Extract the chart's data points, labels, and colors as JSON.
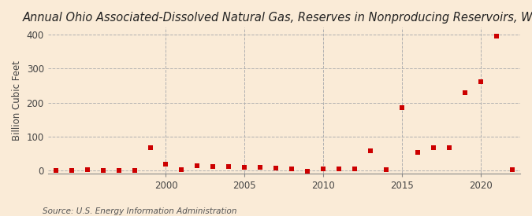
{
  "title": "Annual Ohio Associated-Dissolved Natural Gas, Reserves in Nonproducing Reservoirs, Wet",
  "ylabel": "Billion Cubic Feet",
  "source": "Source: U.S. Energy Information Administration",
  "background_color": "#faebd7",
  "plot_background_color": "#faebd7",
  "marker_color": "#cc0000",
  "marker_size": 18,
  "years": [
    1993,
    1994,
    1995,
    1996,
    1997,
    1998,
    1999,
    2000,
    2001,
    2002,
    2003,
    2004,
    2005,
    2006,
    2007,
    2008,
    2009,
    2010,
    2011,
    2012,
    2013,
    2014,
    2015,
    2016,
    2017,
    2018,
    2019,
    2020,
    2021,
    2022
  ],
  "values": [
    1,
    0,
    2,
    1,
    1,
    1,
    68,
    18,
    3,
    14,
    13,
    11,
    9,
    9,
    8,
    4,
    -1,
    4,
    4,
    5,
    58,
    2,
    185,
    53,
    68,
    68,
    228,
    262,
    395,
    2
  ],
  "ylim": [
    -10,
    420
  ],
  "xlim": [
    1992.5,
    2022.5
  ],
  "yticks": [
    0,
    100,
    200,
    300,
    400
  ],
  "xticks": [
    2000,
    2005,
    2010,
    2015,
    2020
  ],
  "vgrid_color": "#b0b0b0",
  "hgrid_color": "#b0b0b0",
  "title_fontsize": 10.5,
  "label_fontsize": 8.5,
  "tick_fontsize": 8.5,
  "source_fontsize": 7.5
}
